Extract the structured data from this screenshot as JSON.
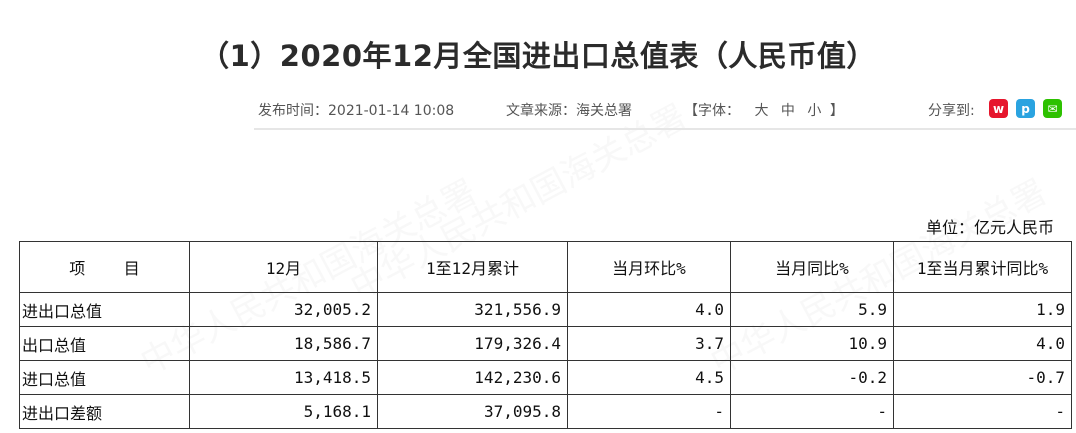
{
  "article": {
    "title": "（1）2020年12月全国进出口总值表（人民币值）",
    "publish_time": "发布时间：2021-01-14 10:08",
    "source": "文章来源：海关总署",
    "font_size_label": "【字体：",
    "font_large": "大",
    "font_medium": "中",
    "font_small": "小",
    "font_close": "】",
    "share_label": "分享到:",
    "share_icons": [
      "weibo-icon",
      "qq-space-icon",
      "wechat-icon"
    ],
    "watermark_text": "中华人民共和国海关总署"
  },
  "table": {
    "unit": "单位：亿元人民币",
    "headers": [
      "项    目",
      "12月",
      "1至12月累计",
      "当月环比%",
      "当月同比%",
      "1至当月累计同比%"
    ],
    "rows": [
      [
        "进出口总值",
        "32,005.2",
        "321,556.9",
        "4.0",
        "5.9",
        "1.9"
      ],
      [
        "出口总值",
        "18,586.7",
        "179,326.4",
        "3.7",
        "10.9",
        "4.0"
      ],
      [
        "进口总值",
        "13,418.5",
        "142,230.6",
        "4.5",
        "-0.2",
        "-0.7"
      ],
      [
        "进出口差额",
        "5,168.1",
        "37,095.8",
        "-",
        "-",
        "-"
      ]
    ]
  },
  "colors": {
    "weibo": "#e6162d",
    "qq_space": "#2aa3e0",
    "wechat": "#2dc100"
  }
}
